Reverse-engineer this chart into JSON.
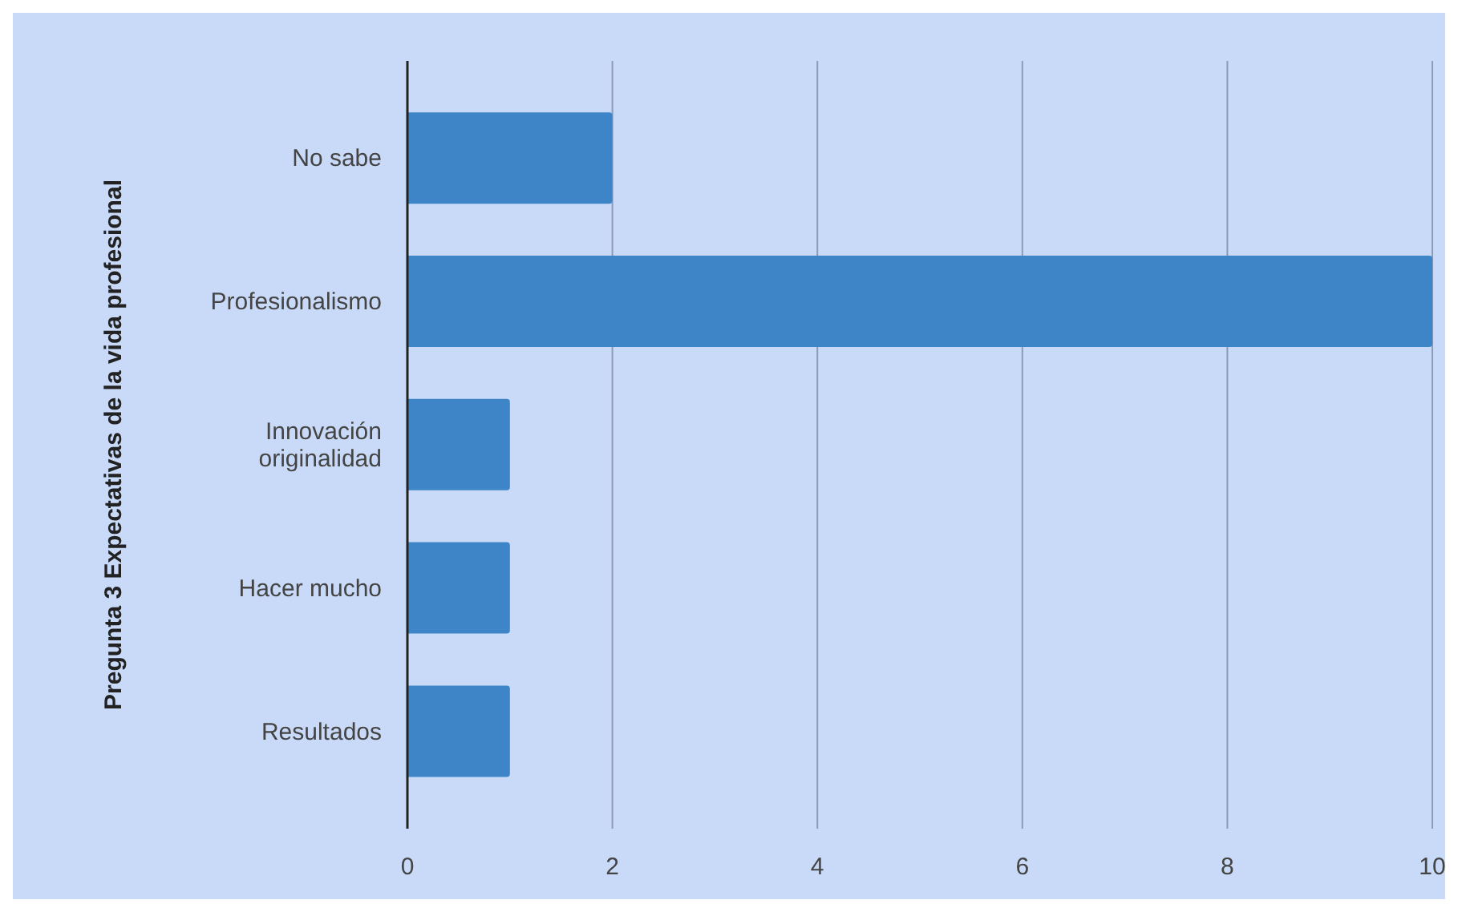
{
  "chart_data": {
    "type": "bar",
    "orientation": "horizontal",
    "ylabel": "Pregunta 3 Expectativas de la vida profesional",
    "categories": [
      "No sabe",
      "Profesionalismo",
      "Innovación originalidad",
      "Hacer mucho",
      "Resultados"
    ],
    "values": [
      2,
      10,
      1,
      1,
      1
    ],
    "color": "#3d85c6",
    "xlim": [
      0,
      10
    ],
    "xticks": [
      0,
      2,
      4,
      6,
      8,
      10
    ],
    "grid": "x"
  }
}
